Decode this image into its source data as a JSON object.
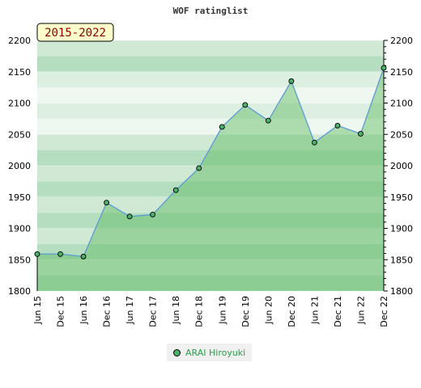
{
  "chart_data": {
    "type": "area",
    "title": "WOF ratinglist",
    "period_label": "2015-2022",
    "x": [
      "Jun 15",
      "Dec 15",
      "Jun 16",
      "Dec 16",
      "Jun 17",
      "Dec 17",
      "Jun 18",
      "Dec 18",
      "Jun 19",
      "Dec 19",
      "Jun 20",
      "Dec 20",
      "Jun 21",
      "Dec 21",
      "Jun 22",
      "Dec 22"
    ],
    "series": [
      {
        "name": "ARAI Hiroyuki",
        "values": [
          1859,
          1859,
          1855,
          1941,
          1919,
          1922,
          1961,
          1996,
          2062,
          2097,
          2072,
          2135,
          2037,
          2064,
          2051,
          2156
        ]
      }
    ],
    "ylim": [
      1800,
      2200
    ],
    "yticks": [
      1800,
      1850,
      1900,
      1950,
      2000,
      2050,
      2100,
      2150,
      2200
    ],
    "xlabel": "",
    "ylabel": "",
    "grid": true,
    "legend_position": "bottom",
    "colors": {
      "line": "#5b9bd5",
      "area_fill": "#5cb85c",
      "marker": "#4caf6a",
      "band_light": "#eef7f0",
      "band_mid": "#cfe9d5",
      "band_dark": "#b5dec1"
    }
  }
}
